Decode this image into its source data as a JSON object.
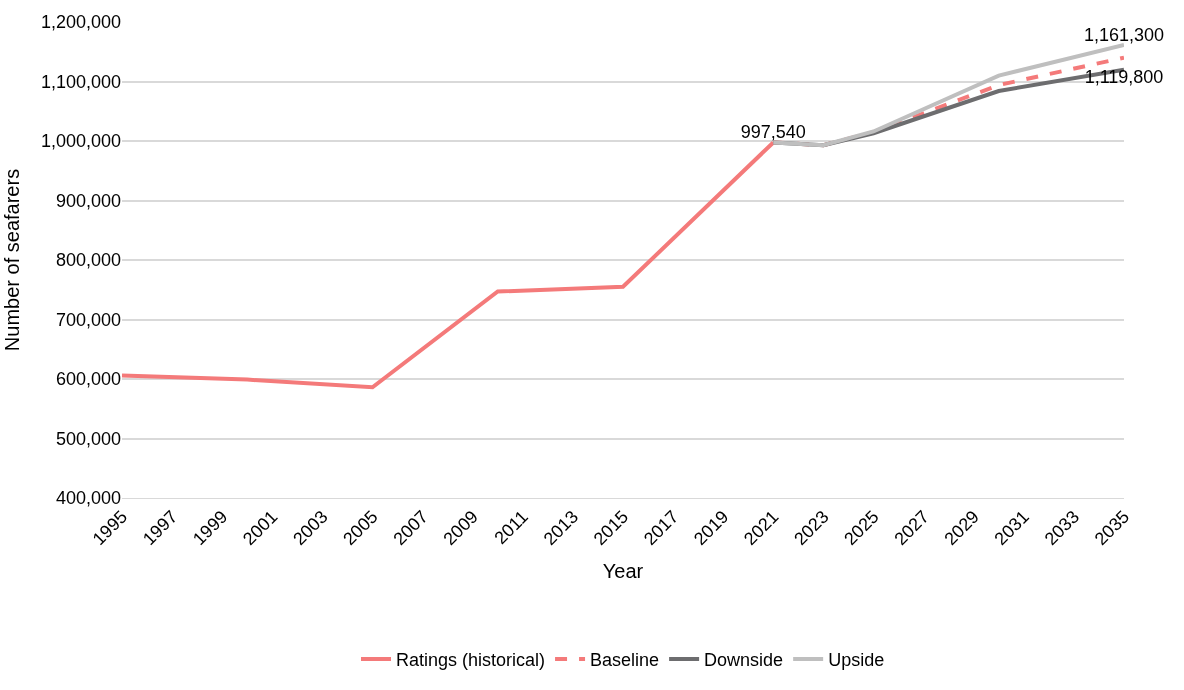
{
  "chart_data": {
    "type": "line",
    "xlabel": "Year",
    "ylabel": "Number of seafarers",
    "xlim": [
      1995,
      2035
    ],
    "xticks": [
      1995,
      1997,
      1999,
      2001,
      2003,
      2005,
      2007,
      2009,
      2011,
      2013,
      2015,
      2017,
      2019,
      2021,
      2023,
      2025,
      2027,
      2029,
      2031,
      2033,
      2035
    ],
    "ylim": [
      400000,
      1200000
    ],
    "yticks": [
      {
        "value": 400000,
        "label": "400,000"
      },
      {
        "value": 500000,
        "label": "500,000"
      },
      {
        "value": 600000,
        "label": "600,000"
      },
      {
        "value": 700000,
        "label": "700,000"
      },
      {
        "value": 800000,
        "label": "800,000"
      },
      {
        "value": 900000,
        "label": "900,000"
      },
      {
        "value": 1000000,
        "label": "1,000,000"
      },
      {
        "value": 1100000,
        "label": "1,100,000"
      },
      {
        "value": 1200000,
        "label": "1,200,000"
      }
    ],
    "grid": "y",
    "legend": "bottom",
    "marker": "none",
    "series": [
      {
        "name": "Ratings (historical)",
        "color": "#f47a7a",
        "x": [
          1995,
          2000,
          2005,
          2010,
          2015,
          2021
        ],
        "values": [
          606000,
          599000,
          586000,
          747000,
          755000,
          997540
        ],
        "value_labels": [
          null,
          null,
          null,
          null,
          null,
          "997,540"
        ]
      },
      {
        "name": "Baseline",
        "color": "#f47a7a",
        "line_style": "dashed",
        "x": [
          2021,
          2023,
          2025,
          2030,
          2035
        ],
        "values": [
          997540,
          993000,
          1015000,
          1094000,
          1140000
        ]
      },
      {
        "name": "Downside",
        "color": "#6d6d6f",
        "x": [
          2021,
          2023,
          2025,
          2030,
          2035
        ],
        "values": [
          997540,
          993000,
          1013000,
          1084000,
          1119800
        ],
        "value_labels": [
          null,
          null,
          null,
          null,
          "1,119,800"
        ]
      },
      {
        "name": "Upside",
        "color": "#bfbfbf",
        "x": [
          2021,
          2023,
          2025,
          2030,
          2035
        ],
        "values": [
          997540,
          993000,
          1016000,
          1110000,
          1161300
        ],
        "value_labels": [
          null,
          null,
          null,
          null,
          "1,161,300"
        ]
      }
    ]
  }
}
